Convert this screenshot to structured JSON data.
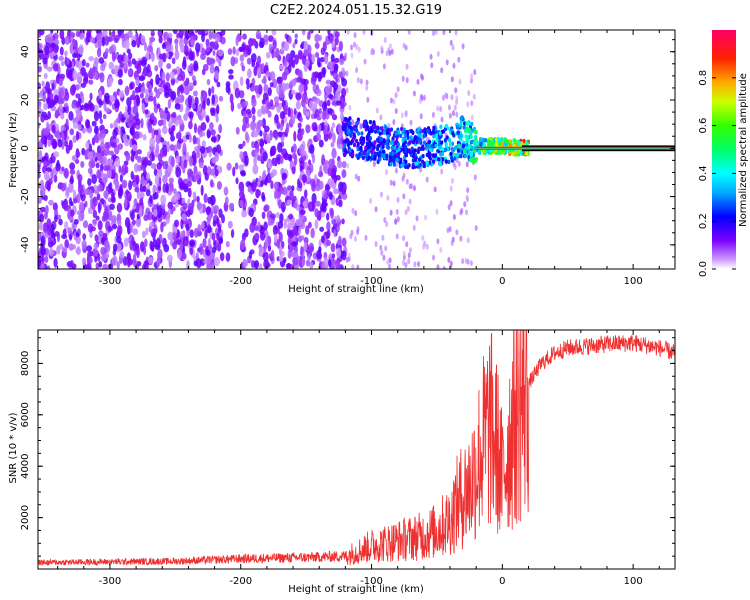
{
  "title": "C2E2.2024.051.15.32.G19",
  "chart_data": [
    {
      "type": "heatmap",
      "xlabel": "Height of straight line (km)",
      "ylabel": "Frequency (Hz)",
      "xlim": [
        -355,
        132
      ],
      "ylim": [
        -50,
        49
      ],
      "xticks": [
        -300,
        -200,
        -100,
        0,
        100
      ],
      "xtick_labels": [
        "-300",
        "-200",
        "-100",
        "0",
        "100"
      ],
      "yticks": [
        -40,
        -20,
        0,
        20,
        40
      ],
      "ytick_labels": [
        "-40",
        "-20",
        "0",
        "20",
        "40"
      ],
      "colorbar": {
        "label": "Normalized spectral amplitude",
        "range": [
          0,
          1
        ],
        "ticks": [
          0.0,
          0.2,
          0.4,
          0.6,
          0.8
        ],
        "tick_labels": [
          "0.0",
          "0.2",
          "0.4",
          "0.6",
          "0.8"
        ]
      },
      "carrier_track": [
        {
          "x": -120,
          "freq": 5,
          "amp": 0.3
        },
        {
          "x": -100,
          "freq": 3,
          "amp": 0.3
        },
        {
          "x": -80,
          "freq": 0,
          "amp": 0.35
        },
        {
          "x": -60,
          "freq": 0,
          "amp": 0.4
        },
        {
          "x": -40,
          "freq": 2,
          "amp": 0.45
        },
        {
          "x": -30,
          "freq": 5,
          "amp": 0.5
        },
        {
          "x": -20,
          "freq": 1,
          "amp": 0.6
        },
        {
          "x": 0,
          "freq": 1,
          "amp": 0.8
        },
        {
          "x": 15,
          "freq": 0,
          "amp": 0.95
        },
        {
          "x": 130,
          "freq": 0,
          "amp": 0.95
        }
      ],
      "grid": false
    },
    {
      "type": "line",
      "xlabel": "Height of straight line (km)",
      "ylabel": "SNR (10 * v/v)",
      "xlim": [
        -355,
        132
      ],
      "ylim": [
        0,
        9300
      ],
      "xticks": [
        -300,
        -200,
        -100,
        0,
        100
      ],
      "xtick_labels": [
        "-300",
        "-200",
        "-100",
        "0",
        "100"
      ],
      "yticks": [
        2000,
        4000,
        6000,
        8000
      ],
      "ytick_labels": [
        "2000",
        "4000",
        "6000",
        "8000"
      ],
      "color": "#ef3030",
      "x": [
        -355,
        -300,
        -250,
        -200,
        -150,
        -120,
        -110,
        -100,
        -80,
        -60,
        -50,
        -40,
        -35,
        -30,
        -25,
        -20,
        -15,
        -10,
        -5,
        0,
        5,
        10,
        20,
        30,
        40,
        50,
        60,
        80,
        100,
        120,
        132
      ],
      "series": [
        {
          "values": [
            250,
            280,
            300,
            400,
            450,
            500,
            700,
            900,
            1100,
            1300,
            1500,
            1900,
            2500,
            2900,
            3200,
            4000,
            4800,
            5500,
            5000,
            3500,
            5000,
            6000,
            7200,
            8000,
            8400,
            8600,
            8650,
            8750,
            8800,
            8600,
            8400
          ]
        }
      ],
      "grid": false
    }
  ]
}
